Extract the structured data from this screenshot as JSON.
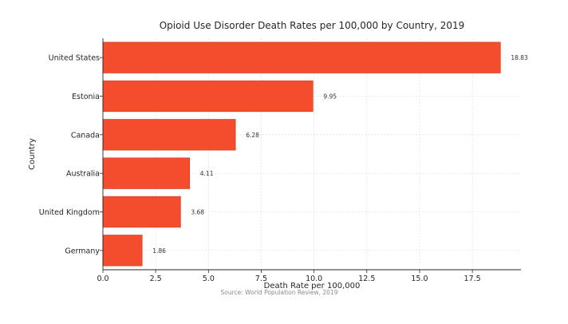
{
  "chart_data": {
    "type": "bar",
    "orientation": "horizontal",
    "title": "Opioid Use Disorder Death Rates per 100,000 by Country, 2019",
    "xlabel": "Death Rate per 100,000",
    "ylabel": "Country",
    "source": "Source: World Population Review, 2019",
    "categories": [
      "United States",
      "Estonia",
      "Canada",
      "Australia",
      "United Kingdom",
      "Germany"
    ],
    "values": [
      18.83,
      9.95,
      6.28,
      4.11,
      3.68,
      1.86
    ],
    "data_labels": [
      "18.83",
      "9.95",
      "6.28",
      "4.11",
      "3.68",
      "1.86"
    ],
    "xlim": [
      0,
      19.8
    ],
    "xticks": [
      0,
      2.5,
      5,
      7.5,
      10,
      12.5,
      15,
      17.5
    ],
    "xtick_labels": [
      "0.0",
      "2.5",
      "5.0",
      "7.5",
      "10.0",
      "12.5",
      "15.0",
      "17.5"
    ],
    "grid": true,
    "bar_color": "#f44d2e",
    "bar_edge_color": "#c8391f"
  }
}
